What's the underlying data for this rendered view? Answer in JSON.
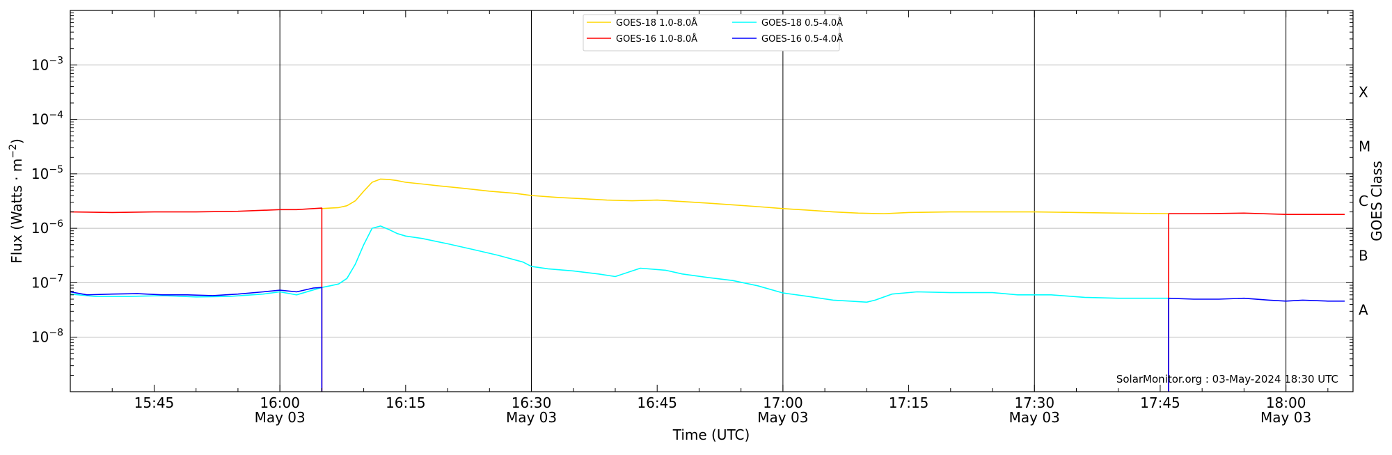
{
  "chart_data": {
    "type": "line",
    "title": "",
    "xlabel": "Time (UTC)",
    "ylabel_left": "Flux (Watts · m",
    "ylabel_left_sup": "−2",
    "ylabel_left_close": ")",
    "ylabel_right": "GOES Class",
    "y_scale": "log",
    "ylim": [
      1e-09,
      0.01
    ],
    "xlim_minutes": [
      "15:35",
      "18:08"
    ],
    "grid": "horizontal at decades",
    "legend_position": "top-center",
    "credit": "SolarMonitor.org : 03-May-2024 18:30 UTC",
    "x_ticks": [
      {
        "time": "15:45",
        "label": "15:45",
        "sub": ""
      },
      {
        "time": "16:00",
        "label": "16:00",
        "sub": "May 03"
      },
      {
        "time": "16:15",
        "label": "16:15",
        "sub": ""
      },
      {
        "time": "16:30",
        "label": "16:30",
        "sub": "May 03"
      },
      {
        "time": "16:45",
        "label": "16:45",
        "sub": ""
      },
      {
        "time": "17:00",
        "label": "17:00",
        "sub": "May 03"
      },
      {
        "time": "17:15",
        "label": "17:15",
        "sub": ""
      },
      {
        "time": "17:30",
        "label": "17:30",
        "sub": "May 03"
      },
      {
        "time": "17:45",
        "label": "17:45",
        "sub": ""
      },
      {
        "time": "18:00",
        "label": "18:00",
        "sub": "May 03"
      }
    ],
    "vertical_lines": [
      "16:00",
      "16:30",
      "17:00",
      "17:30",
      "18:00"
    ],
    "y_ticks": [
      {
        "exp": -8,
        "label": "10",
        "sup": "−8"
      },
      {
        "exp": -7,
        "label": "10",
        "sup": "−7"
      },
      {
        "exp": -6,
        "label": "10",
        "sup": "−6"
      },
      {
        "exp": -5,
        "label": "10",
        "sup": "−5"
      },
      {
        "exp": -4,
        "label": "10",
        "sup": "−4"
      },
      {
        "exp": -3,
        "label": "10",
        "sup": "−3"
      }
    ],
    "goes_classes": [
      {
        "label": "X",
        "exp": -3.5
      },
      {
        "label": "M",
        "exp": -4.5
      },
      {
        "label": "C",
        "exp": -5.5
      },
      {
        "label": "B",
        "exp": -6.5
      },
      {
        "label": "A",
        "exp": -7.5
      }
    ],
    "series": [
      {
        "name": "GOES-18 1.0-8.0Å",
        "color": "#ffd700",
        "points": [
          [
            "16:05",
            2.3e-06
          ],
          [
            "16:06",
            2.35e-06
          ],
          [
            "16:07",
            2.4e-06
          ],
          [
            "16:08",
            2.6e-06
          ],
          [
            "16:09",
            3.2e-06
          ],
          [
            "16:10",
            4.8e-06
          ],
          [
            "16:11",
            7e-06
          ],
          [
            "16:12",
            8e-06
          ],
          [
            "16:13",
            7.9e-06
          ],
          [
            "16:14",
            7.5e-06
          ],
          [
            "16:15",
            7e-06
          ],
          [
            "16:17",
            6.5e-06
          ],
          [
            "16:19",
            6e-06
          ],
          [
            "16:22",
            5.4e-06
          ],
          [
            "16:25",
            4.8e-06
          ],
          [
            "16:28",
            4.4e-06
          ],
          [
            "16:30",
            4e-06
          ],
          [
            "16:33",
            3.7e-06
          ],
          [
            "16:36",
            3.5e-06
          ],
          [
            "16:39",
            3.3e-06
          ],
          [
            "16:42",
            3.2e-06
          ],
          [
            "16:45",
            3.3e-06
          ],
          [
            "16:48",
            3.1e-06
          ],
          [
            "16:51",
            2.9e-06
          ],
          [
            "16:54",
            2.7e-06
          ],
          [
            "16:57",
            2.5e-06
          ],
          [
            "17:00",
            2.3e-06
          ],
          [
            "17:03",
            2.15e-06
          ],
          [
            "17:06",
            2e-06
          ],
          [
            "17:09",
            1.9e-06
          ],
          [
            "17:12",
            1.85e-06
          ],
          [
            "17:15",
            1.95e-06
          ],
          [
            "17:20",
            2e-06
          ],
          [
            "17:25",
            2e-06
          ],
          [
            "17:30",
            2e-06
          ],
          [
            "17:35",
            1.95e-06
          ],
          [
            "17:40",
            1.9e-06
          ],
          [
            "17:46",
            1.85e-06
          ]
        ]
      },
      {
        "name": "GOES-18 0.5-4.0Å",
        "color": "#00ffff",
        "points": [
          [
            "15:35",
            6.2e-08
          ],
          [
            "15:38",
            5.6e-08
          ],
          [
            "15:42",
            5.6e-08
          ],
          [
            "15:46",
            5.8e-08
          ],
          [
            "15:50",
            5.5e-08
          ],
          [
            "15:54",
            5.6e-08
          ],
          [
            "15:58",
            6.2e-08
          ],
          [
            "16:00",
            6.8e-08
          ],
          [
            "16:02",
            6e-08
          ],
          [
            "16:04",
            7.4e-08
          ],
          [
            "16:05",
            8.2e-08
          ],
          [
            "16:06",
            8.8e-08
          ],
          [
            "16:07",
            9.5e-08
          ],
          [
            "16:08",
            1.2e-07
          ],
          [
            "16:09",
            2.2e-07
          ],
          [
            "16:10",
            5e-07
          ],
          [
            "16:11",
            1e-06
          ],
          [
            "16:12",
            1.1e-06
          ],
          [
            "16:13",
            9.5e-07
          ],
          [
            "16:14",
            8e-07
          ],
          [
            "16:15",
            7.2e-07
          ],
          [
            "16:17",
            6.5e-07
          ],
          [
            "16:20",
            5.2e-07
          ],
          [
            "16:23",
            4.1e-07
          ],
          [
            "16:26",
            3.2e-07
          ],
          [
            "16:29",
            2.4e-07
          ],
          [
            "16:30",
            2e-07
          ],
          [
            "16:32",
            1.8e-07
          ],
          [
            "16:35",
            1.65e-07
          ],
          [
            "16:38",
            1.45e-07
          ],
          [
            "16:40",
            1.3e-07
          ],
          [
            "16:43",
            1.85e-07
          ],
          [
            "16:46",
            1.7e-07
          ],
          [
            "16:48",
            1.45e-07
          ],
          [
            "16:51",
            1.25e-07
          ],
          [
            "16:54",
            1.1e-07
          ],
          [
            "16:57",
            8.8e-08
          ],
          [
            "17:00",
            6.5e-08
          ],
          [
            "17:03",
            5.6e-08
          ],
          [
            "17:06",
            4.8e-08
          ],
          [
            "17:08",
            4.6e-08
          ],
          [
            "17:10",
            4.4e-08
          ],
          [
            "17:11",
            4.8e-08
          ],
          [
            "17:13",
            6.2e-08
          ],
          [
            "17:16",
            6.8e-08
          ],
          [
            "17:20",
            6.6e-08
          ],
          [
            "17:25",
            6.6e-08
          ],
          [
            "17:28",
            6e-08
          ],
          [
            "17:32",
            6e-08
          ],
          [
            "17:36",
            5.4e-08
          ],
          [
            "17:40",
            5.2e-08
          ],
          [
            "17:46",
            5.2e-08
          ]
        ]
      },
      {
        "name": "GOES-16 1.0-8.0Å",
        "color": "#ff0000",
        "points": [
          [
            "15:35",
            2e-06
          ],
          [
            "15:40",
            1.95e-06
          ],
          [
            "15:45",
            2e-06
          ],
          [
            "15:50",
            2e-06
          ],
          [
            "15:55",
            2.05e-06
          ],
          [
            "16:00",
            2.2e-06
          ],
          [
            "16:02",
            2.2e-06
          ],
          [
            "16:05",
            2.35e-06
          ],
          [
            "16:05",
            1e-09
          ],
          null,
          [
            "17:46",
            1e-09
          ],
          [
            "17:46",
            1.85e-06
          ],
          [
            "17:50",
            1.85e-06
          ],
          [
            "17:55",
            1.9e-06
          ],
          [
            "18:00",
            1.8e-06
          ],
          [
            "18:04",
            1.8e-06
          ],
          [
            "18:07",
            1.8e-06
          ]
        ]
      },
      {
        "name": "GOES-16 0.5-4.0Å",
        "color": "#0000ff",
        "points": [
          [
            "15:35",
            6.8e-08
          ],
          [
            "15:37",
            6e-08
          ],
          [
            "15:40",
            6.2e-08
          ],
          [
            "15:43",
            6.3e-08
          ],
          [
            "15:46",
            6e-08
          ],
          [
            "15:49",
            6e-08
          ],
          [
            "15:52",
            5.8e-08
          ],
          [
            "15:55",
            6.2e-08
          ],
          [
            "15:58",
            6.8e-08
          ],
          [
            "16:00",
            7.3e-08
          ],
          [
            "16:02",
            6.8e-08
          ],
          [
            "16:04",
            8e-08
          ],
          [
            "16:05",
            8.2e-08
          ],
          [
            "16:05",
            1e-09
          ],
          null,
          [
            "17:46",
            1e-09
          ],
          [
            "17:46",
            5.2e-08
          ],
          [
            "17:49",
            5e-08
          ],
          [
            "17:52",
            5e-08
          ],
          [
            "17:55",
            5.2e-08
          ],
          [
            "17:58",
            4.8e-08
          ],
          [
            "18:00",
            4.6e-08
          ],
          [
            "18:02",
            4.8e-08
          ],
          [
            "18:05",
            4.6e-08
          ],
          [
            "18:07",
            4.6e-08
          ]
        ]
      }
    ]
  }
}
